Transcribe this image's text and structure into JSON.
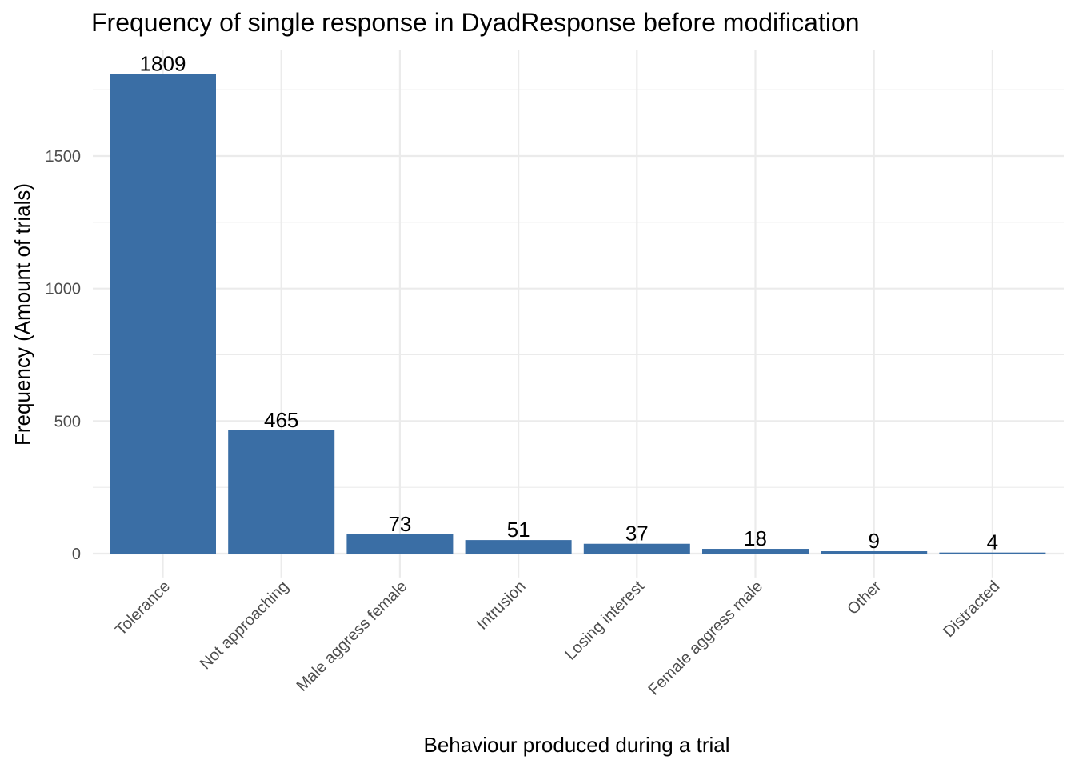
{
  "chart_data": {
    "type": "bar",
    "title": "Frequency of single response in DyadResponse before modification",
    "xlabel": "Behaviour produced during a trial",
    "ylabel": "Frequency (Amount of trials)",
    "categories": [
      "Tolerance",
      "Not approaching",
      "Male aggress female",
      "Intrusion",
      "Losing interest",
      "Female aggress male",
      "Other",
      "Distracted"
    ],
    "values": [
      1809,
      465,
      73,
      51,
      37,
      18,
      9,
      4
    ],
    "data_labels": [
      "1809",
      "465",
      "73",
      "51",
      "37",
      "18",
      "9",
      "4"
    ],
    "y_ticks": [
      0,
      500,
      1000,
      1500
    ],
    "y_tick_labels": [
      "0",
      "500",
      "1000",
      "1500"
    ],
    "ylim": [
      -90,
      1900
    ],
    "grid": true,
    "legend": "none",
    "bar_color": "#3a6ea5"
  }
}
